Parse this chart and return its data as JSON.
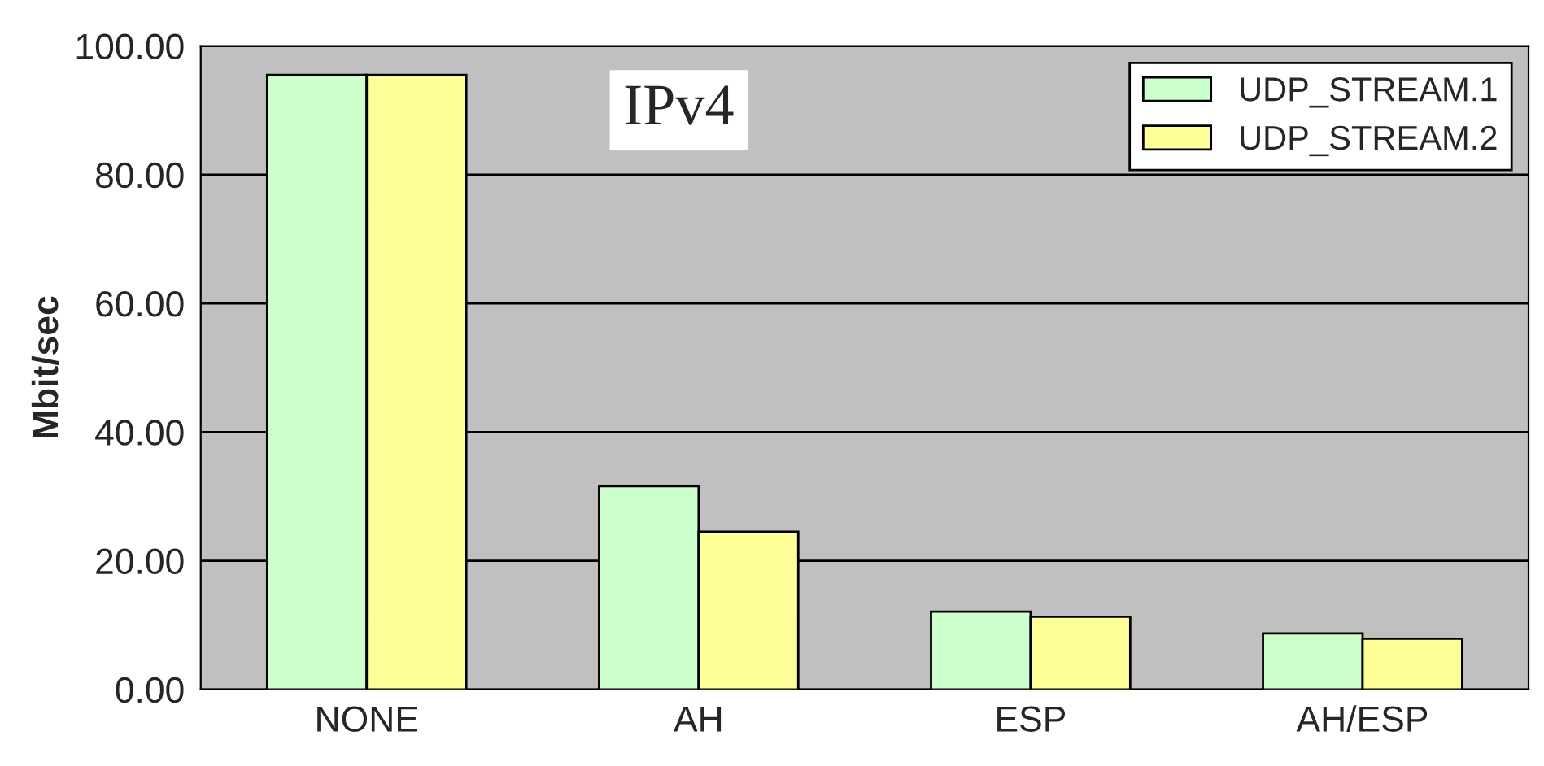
{
  "chart_data": {
    "type": "bar",
    "title": "IPv4",
    "ylabel": "Mbit/sec",
    "categories": [
      "NONE",
      "AH",
      "ESP",
      "AH/ESP"
    ],
    "series": [
      {
        "name": "UDP_STREAM.1",
        "color": "#ccffcc",
        "values": [
          95.5,
          31.6,
          12.1,
          8.7
        ]
      },
      {
        "name": "UDP_STREAM.2",
        "color": "#ffff99",
        "values": [
          95.5,
          24.5,
          11.3,
          7.9
        ]
      }
    ],
    "ylim": [
      0,
      100
    ],
    "yticks": [
      {
        "value": 0,
        "label": "0.00"
      },
      {
        "value": 20,
        "label": "20.00"
      },
      {
        "value": 40,
        "label": "40.00"
      },
      {
        "value": 60,
        "label": "60.00"
      },
      {
        "value": 80,
        "label": "80.00"
      },
      {
        "value": 100,
        "label": "100.00"
      }
    ],
    "grid": "y",
    "legend": "top right"
  }
}
